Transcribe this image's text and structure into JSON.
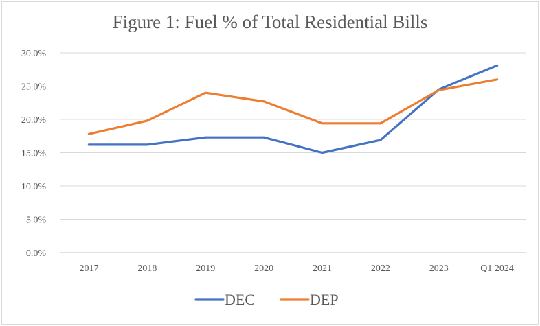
{
  "chart_data": {
    "type": "line",
    "title": "Figure 1: Fuel % of Total Residential Bills",
    "categories": [
      "2017",
      "2018",
      "2019",
      "2020",
      "2021",
      "2022",
      "2023",
      "Q1 2024"
    ],
    "y_ticks": [
      "0.0%",
      "5.0%",
      "10.0%",
      "15.0%",
      "20.0%",
      "25.0%",
      "30.0%"
    ],
    "ylim": [
      0,
      30
    ],
    "xlabel": "",
    "ylabel": "",
    "grid": true,
    "legend_position": "bottom",
    "series": [
      {
        "name": "DEC",
        "color": "#4472C4",
        "values": [
          16.2,
          16.2,
          17.3,
          17.3,
          15.0,
          16.9,
          24.5,
          28.1
        ]
      },
      {
        "name": "DEP",
        "color": "#ED7D31",
        "values": [
          17.8,
          19.8,
          24.0,
          22.7,
          19.4,
          19.4,
          24.4,
          26.0
        ]
      }
    ]
  }
}
